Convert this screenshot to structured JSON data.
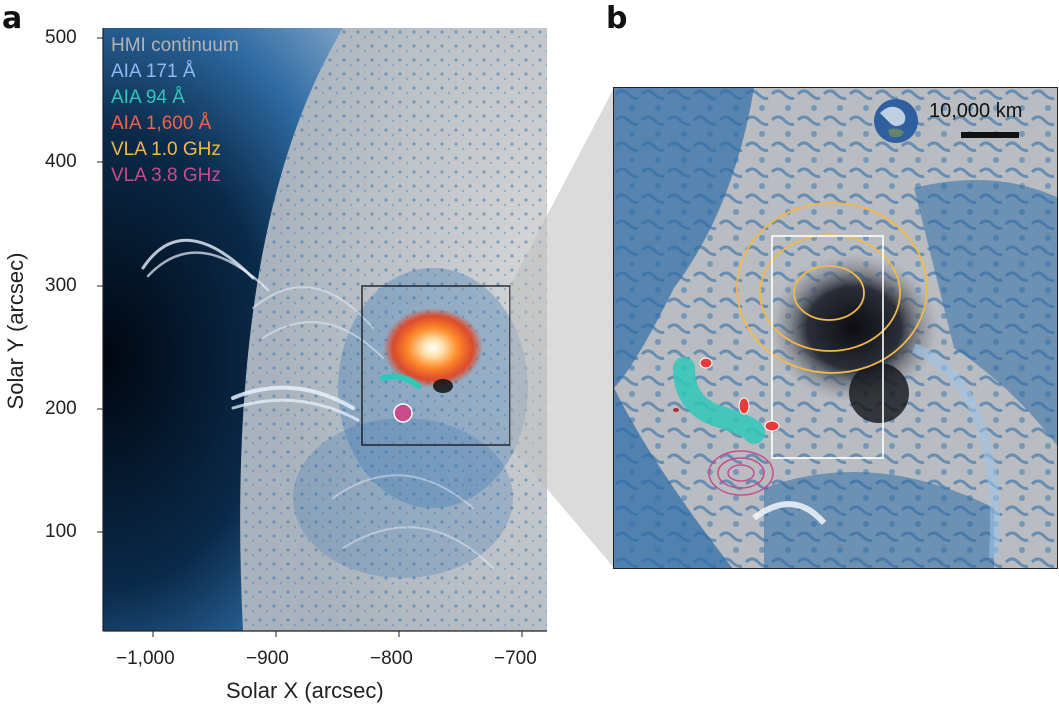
{
  "panels": {
    "a": {
      "letter": "a"
    },
    "b": {
      "letter": "b"
    }
  },
  "legend": [
    {
      "label": "HMI continuum",
      "color": "#b4b4b4"
    },
    {
      "label": "AIA 171 Å",
      "color": "#8fb7f0"
    },
    {
      "label": "AIA 94 Å",
      "color": "#2fc8b8"
    },
    {
      "label": "AIA 1,600 Å",
      "color": "#f0644a"
    },
    {
      "label": "VLA 1.0 GHz",
      "color": "#f2b84a"
    },
    {
      "label": "VLA 3.8 GHz",
      "color": "#c84c8c"
    }
  ],
  "axes": {
    "x_title": "Solar X (arcsec)",
    "y_title": "Solar Y (arcsec)",
    "x_ticks": [
      "−1,000",
      "−900",
      "−800",
      "−700"
    ],
    "y_ticks": [
      "500",
      "400",
      "300",
      "200",
      "100"
    ]
  },
  "scale_bar": {
    "label": "10,000 km"
  },
  "colors": {
    "aia171": "#3a78b4",
    "aia94": "#2fc8b8",
    "aia1600": "#e84a2a",
    "vla1": "#f2b84a",
    "vla38": "#c84c8c",
    "hmi": "#c9c9c9"
  }
}
